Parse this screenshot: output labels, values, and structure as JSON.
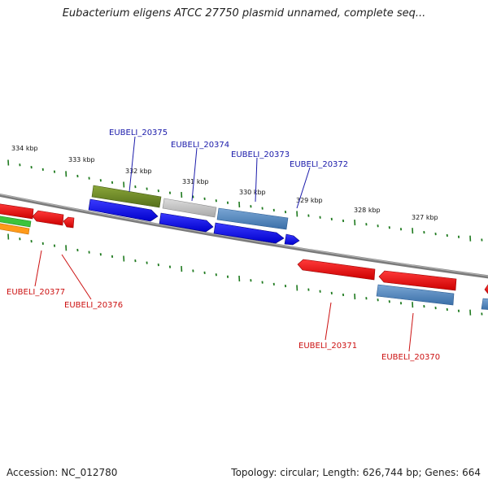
{
  "title": "Eubacterium eligens ATCC 27750 plasmid unnamed, complete seq...",
  "footer": {
    "accession": "Accession: NC_012780",
    "summary": "Topology: circular; Length: 626,744 bp; Genes: 664"
  },
  "ticks": [
    "334 kbp",
    "333 kbp",
    "332 kbp",
    "331 kbp",
    "330 kbp",
    "329 kbp",
    "328 kbp",
    "327 kbp"
  ],
  "genes_forward": [
    "EUBELI_20375",
    "EUBELI_20374",
    "EUBELI_20373",
    "EUBELI_20372"
  ],
  "genes_reverse": [
    "EUBELI_20377",
    "EUBELI_20376",
    "EUBELI_20371",
    "EUBELI_20370"
  ],
  "colors": {
    "forward_label": "#1a1aaa",
    "reverse_label": "#cc1111",
    "tick": "#1f7a1f",
    "backbone": "#7a7a7a"
  }
}
